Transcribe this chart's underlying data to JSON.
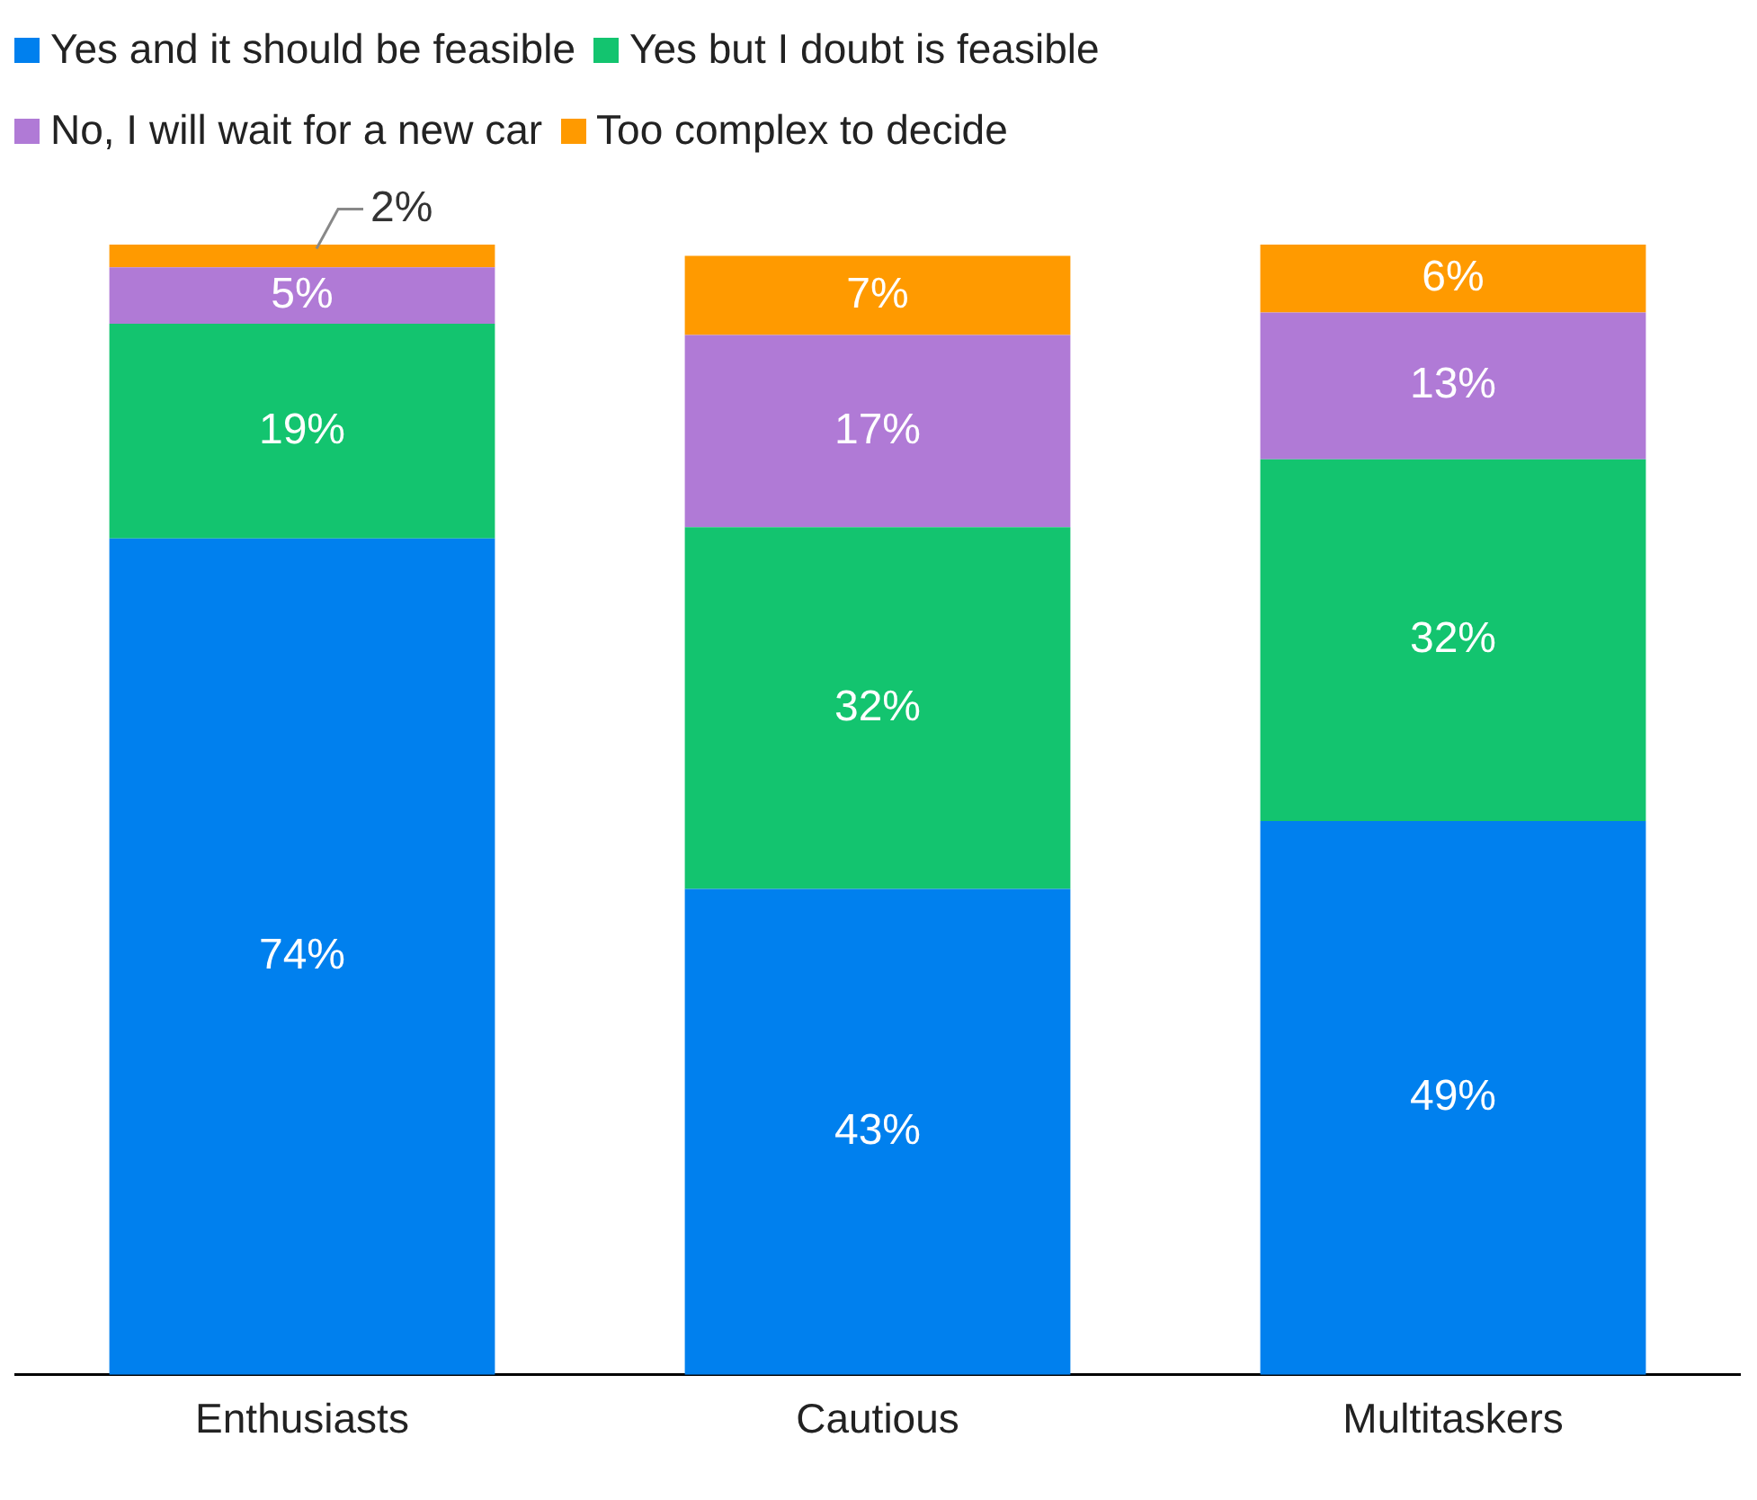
{
  "chart_data": {
    "type": "bar",
    "stacked": true,
    "categories": [
      "Enthusiasts",
      "Cautious",
      "Multitaskers"
    ],
    "series": [
      {
        "name": "Yes and it should be feasible",
        "color": "#0080ee",
        "values": [
          74,
          43,
          49
        ],
        "value_labels": [
          "74%",
          "43%",
          "49%"
        ]
      },
      {
        "name": "Yes but I doubt is feasible",
        "color": "#13c46f",
        "values": [
          19,
          32,
          32
        ],
        "value_labels": [
          "19%",
          "32%",
          "32%"
        ]
      },
      {
        "name": "No, I will wait for a new car",
        "color": "#b07ad6",
        "values": [
          5,
          17,
          13
        ],
        "value_labels": [
          "5%",
          "17%",
          "13%"
        ]
      },
      {
        "name": "Too complex to decide",
        "color": "#ff9a00",
        "values": [
          2,
          7,
          6
        ],
        "value_labels": [
          "2%",
          "7%",
          "6%"
        ]
      }
    ],
    "legend": "top left",
    "grid": false
  }
}
